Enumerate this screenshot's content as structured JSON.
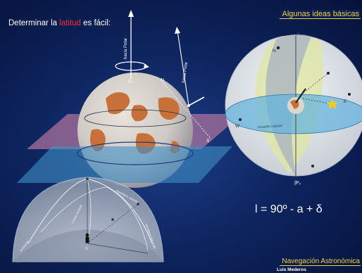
{
  "slide": {
    "title_prefix": "Determinar la ",
    "title_highlight": "latitud",
    "title_suffix": " es fácil:",
    "ideas_label": "Algunas ideas básicas",
    "formula": "l = 90º - a + δ",
    "nav_label": "Navegación Astronómica",
    "author": "Luis Mederos"
  },
  "earth_diagram": {
    "pole_direction_1": "hacia Polar",
    "pole_direction_2": "hacia Polar",
    "north_pole": "Pₙ",
    "north": "N",
    "south": "S"
  },
  "celestial_sphere": {
    "north_pole": "Pₙ",
    "south_pole": "|Pₛ",
    "north": "N",
    "west": "W",
    "east": "E",
    "equator": "ecuador celeste"
  },
  "horizon_dome": {
    "label_1": "meridiano celeste",
    "label_2": "círculo vertical",
    "label_3": "horizonte",
    "label_4": "meridiano del lugar",
    "observer": "O"
  },
  "colors": {
    "background": "#0e2560",
    "title_text": "#ffffff",
    "highlight": "#ff2a2a",
    "accent_yellow": "#f3d23c",
    "plane_pink": "#c97fa6",
    "plane_blue": "#3f8fc4"
  }
}
